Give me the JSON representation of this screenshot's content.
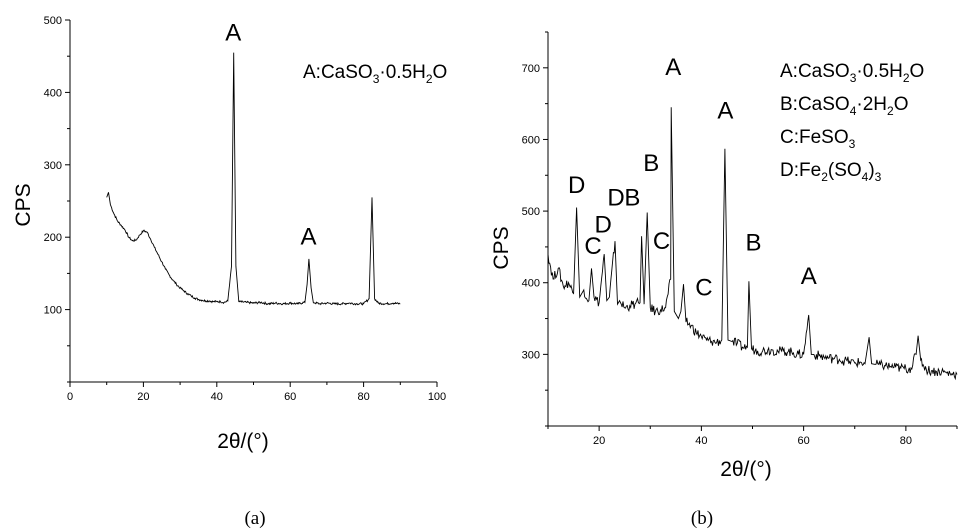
{
  "chart_data": [
    {
      "panel": "(a)",
      "type": "line",
      "xlabel": "2θ/(°)",
      "ylabel": "CPS",
      "xlim": [
        0,
        100
      ],
      "ylim": [
        0,
        500
      ],
      "xticks": [
        "0",
        "20",
        "40",
        "60",
        "80",
        "100"
      ],
      "yticks": [
        "100",
        "200",
        "300",
        "400",
        "500"
      ],
      "legend": [
        "A:CaSO3·0.5H2O"
      ],
      "peak_labels": [
        {
          "text": "A",
          "x": 44.5,
          "y": 472
        },
        {
          "text": "A",
          "x": 65,
          "y": 190
        }
      ],
      "series": [
        {
          "points": [
            [
              10,
              255
            ],
            [
              10.5,
              262
            ],
            [
              11,
              245
            ],
            [
              12,
              232
            ],
            [
              13,
              222
            ],
            [
              14,
              216
            ],
            [
              15,
              210
            ],
            [
              16,
              200
            ],
            [
              17,
              195
            ],
            [
              18,
              196
            ],
            [
              19,
              203
            ],
            [
              20,
              209
            ],
            [
              21,
              207
            ],
            [
              22,
              197
            ],
            [
              23,
              186
            ],
            [
              24,
              176
            ],
            [
              25,
              166
            ],
            [
              26,
              156
            ],
            [
              27,
              148
            ],
            [
              28,
              141
            ],
            [
              29,
              135
            ],
            [
              30,
              130
            ],
            [
              31,
              126
            ],
            [
              32,
              122
            ],
            [
              33,
              119
            ],
            [
              34,
              116
            ],
            [
              35,
              114
            ],
            [
              36,
              113
            ],
            [
              37,
              112
            ],
            [
              38,
              112
            ],
            [
              39,
              111
            ],
            [
              40,
              111
            ],
            [
              41,
              111
            ],
            [
              42,
              110
            ],
            [
              43,
              112
            ],
            [
              44,
              160
            ],
            [
              44.6,
              455
            ],
            [
              45.2,
              160
            ],
            [
              46,
              111
            ],
            [
              48,
              110
            ],
            [
              50,
              109
            ],
            [
              52,
              110
            ],
            [
              54,
              108
            ],
            [
              56,
              109
            ],
            [
              58,
              108
            ],
            [
              60,
              109
            ],
            [
              62,
              108
            ],
            [
              64,
              110
            ],
            [
              64.6,
              135
            ],
            [
              65.1,
              170
            ],
            [
              65.7,
              130
            ],
            [
              66.3,
              110
            ],
            [
              68,
              108
            ],
            [
              70,
              109
            ],
            [
              72,
              108
            ],
            [
              74,
              108
            ],
            [
              76,
              109
            ],
            [
              78,
              108
            ],
            [
              80,
              108
            ],
            [
              81.5,
              115
            ],
            [
              82.3,
              255
            ],
            [
              83,
              115
            ],
            [
              84,
              109
            ],
            [
              86,
              108
            ],
            [
              88,
              109
            ],
            [
              90,
              108
            ]
          ]
        }
      ]
    },
    {
      "panel": "(b)",
      "type": "line",
      "xlabel": "2θ/(°)",
      "ylabel": "CPS",
      "xlim": [
        10,
        90
      ],
      "ylim": [
        200,
        750
      ],
      "xticks": [
        "20",
        "40",
        "60",
        "80"
      ],
      "yticks": [
        "300",
        "400",
        "500",
        "600",
        "700"
      ],
      "legend": [
        "A:CaSO3·0.5H2O",
        "B:CaSO4·2H2O",
        "C:FeSO3",
        "D:Fe2(SO4)3"
      ],
      "peak_labels": [
        {
          "text": "D",
          "x": 15.6,
          "y": 525
        },
        {
          "text": "C",
          "x": 18.8,
          "y": 440
        },
        {
          "text": "D",
          "x": 20.8,
          "y": 470
        },
        {
          "text": "D",
          "x": 23.3,
          "y": 508
        },
        {
          "text": "B",
          "x": 26.5,
          "y": 508
        },
        {
          "text": "B",
          "x": 30.2,
          "y": 556
        },
        {
          "text": "C",
          "x": 32.2,
          "y": 447
        },
        {
          "text": "A",
          "x": 34.5,
          "y": 690
        },
        {
          "text": "C",
          "x": 40.5,
          "y": 382
        },
        {
          "text": "A",
          "x": 44.7,
          "y": 629
        },
        {
          "text": "B",
          "x": 50.2,
          "y": 445
        },
        {
          "text": "A",
          "x": 61,
          "y": 398
        }
      ],
      "series": [
        {
          "points": [
            [
              10,
              440
            ],
            [
              11,
              405
            ],
            [
              12,
              420
            ],
            [
              13,
              395
            ],
            [
              14,
              400
            ],
            [
              15,
              385
            ],
            [
              15.6,
              505
            ],
            [
              16.2,
              380
            ],
            [
              17,
              390
            ],
            [
              18,
              375
            ],
            [
              18.5,
              420
            ],
            [
              19,
              380
            ],
            [
              20,
              372
            ],
            [
              21,
              440
            ],
            [
              21.5,
              375
            ],
            [
              22,
              380
            ],
            [
              23.1,
              458
            ],
            [
              23.6,
              370
            ],
            [
              24,
              375
            ],
            [
              25,
              365
            ],
            [
              26,
              368
            ],
            [
              27,
              370
            ],
            [
              28,
              372
            ],
            [
              28.3,
              465
            ],
            [
              28.8,
              370
            ],
            [
              29.4,
              498
            ],
            [
              30,
              365
            ],
            [
              31,
              360
            ],
            [
              32,
              362
            ],
            [
              33,
              365
            ],
            [
              34,
              405
            ],
            [
              34.1,
              645
            ],
            [
              34.7,
              360
            ],
            [
              35.5,
              350
            ],
            [
              36,
              360
            ],
            [
              36.5,
              398
            ],
            [
              37,
              345
            ],
            [
              38,
              340
            ],
            [
              39,
              330
            ],
            [
              40,
              325
            ],
            [
              41,
              320
            ],
            [
              42,
              318
            ],
            [
              43,
              317
            ],
            [
              44,
              320
            ],
            [
              44.6,
              587
            ],
            [
              45.2,
              320
            ],
            [
              46,
              318
            ],
            [
              47,
              315
            ],
            [
              48,
              310
            ],
            [
              49,
              310
            ],
            [
              49.3,
              402
            ],
            [
              49.8,
              308
            ],
            [
              51,
              305
            ],
            [
              52,
              305
            ],
            [
              53,
              306
            ],
            [
              54,
              306
            ],
            [
              55,
              304
            ],
            [
              56,
              305
            ],
            [
              57,
              304
            ],
            [
              58,
              302
            ],
            [
              59,
              300
            ],
            [
              60,
              300
            ],
            [
              61,
              355
            ],
            [
              61.5,
              300
            ],
            [
              62,
              300
            ],
            [
              63,
              298
            ],
            [
              64,
              296
            ],
            [
              65,
              295
            ],
            [
              66,
              294
            ],
            [
              67,
              293
            ],
            [
              68,
              291
            ],
            [
              69,
              290
            ],
            [
              70,
              288
            ],
            [
              71,
              289
            ],
            [
              72,
              287
            ],
            [
              72.8,
              324
            ],
            [
              73.3,
              287
            ],
            [
              74,
              286
            ],
            [
              75,
              285
            ],
            [
              76,
              284
            ],
            [
              77,
              283
            ],
            [
              78,
              282
            ],
            [
              79,
              281
            ],
            [
              80,
              280
            ],
            [
              81,
              281
            ],
            [
              82,
              300
            ],
            [
              82.4,
              326
            ],
            [
              82.9,
              292
            ],
            [
              84,
              279
            ],
            [
              85,
              277
            ],
            [
              86,
              276
            ],
            [
              87,
              276
            ],
            [
              88,
              274
            ],
            [
              89,
              273
            ],
            [
              90,
              272
            ]
          ]
        }
      ]
    }
  ],
  "captions": {
    "a": "(a)",
    "b": "(b)"
  }
}
